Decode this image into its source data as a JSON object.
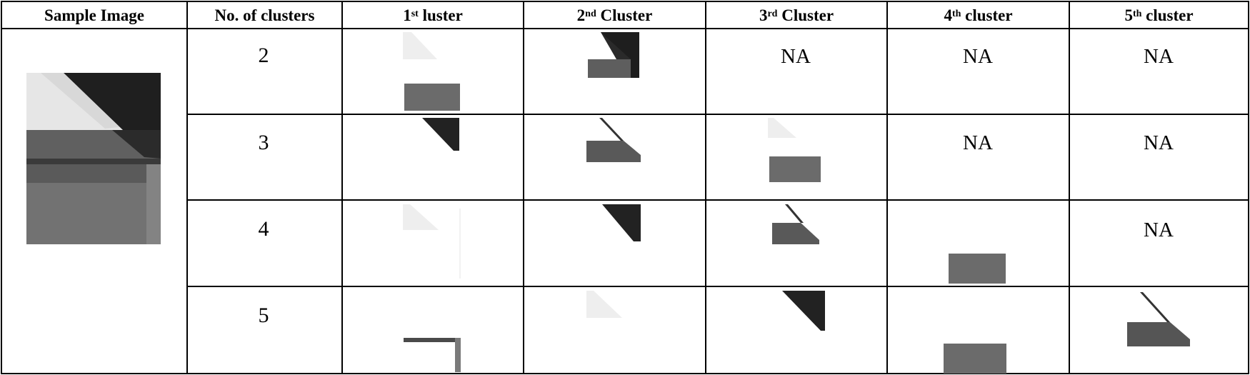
{
  "headers": {
    "sample": "Sample Image",
    "clusters": "No. of clusters",
    "c1": {
      "pre": "1",
      "sup": "st",
      "post": " luster"
    },
    "c2": {
      "pre": "2",
      "sup": "nd",
      "post": " Cluster"
    },
    "c3": {
      "pre": "3",
      "sup": "rd",
      "post": " Cluster"
    },
    "c4": {
      "pre": "4",
      "sup": "th",
      "post": " cluster"
    },
    "c5": {
      "pre": "5",
      "sup": "th",
      "post": " cluster"
    }
  },
  "rows": [
    {
      "n": "2",
      "cells": [
        "img",
        "img",
        "NA",
        "NA",
        "NA"
      ]
    },
    {
      "n": "3",
      "cells": [
        "img",
        "img",
        "img",
        "NA",
        "NA"
      ]
    },
    {
      "n": "4",
      "cells": [
        "img",
        "img",
        "img",
        "img",
        "NA"
      ]
    },
    {
      "n": "5",
      "cells": [
        "img",
        "img",
        "img",
        "img",
        "img"
      ]
    }
  ],
  "na_text": "NA",
  "colors": {
    "light": "#ececec",
    "mid": "#6e6e6e",
    "dark": "#252525"
  }
}
